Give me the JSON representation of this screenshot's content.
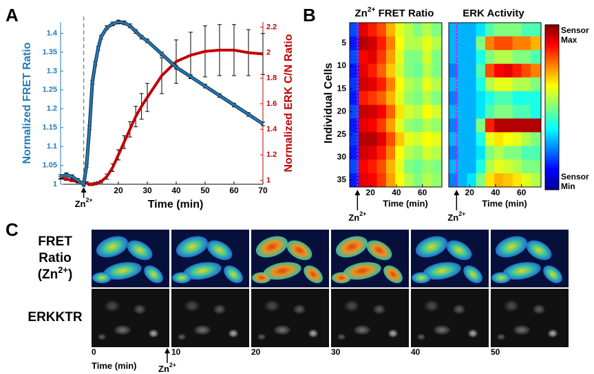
{
  "panel_labels": [
    "A",
    "B",
    "C"
  ],
  "chart_data": [
    {
      "type": "line",
      "xlabel": "Time (min)",
      "ylabel": "Normalized FRET Ratio",
      "y2label": "Normalized ERK C/N Ratio",
      "xlim": [
        0,
        70
      ],
      "xticks": [
        20,
        30,
        40,
        50,
        60,
        70
      ],
      "ylim": [
        1,
        1.43
      ],
      "yticks": [
        1,
        1.05,
        1.1,
        1.15,
        1.2,
        1.25,
        1.3,
        1.35,
        1.4
      ],
      "y2lim": [
        0.97,
        2.24
      ],
      "y2ticks": [
        1,
        1.2,
        1.4,
        1.6,
        1.8,
        2,
        2.2
      ],
      "x": [
        0,
        2,
        4,
        6,
        8,
        9,
        10,
        11,
        12,
        13,
        14,
        16,
        18,
        20,
        22,
        24,
        26,
        28,
        30,
        35,
        40,
        45,
        50,
        55,
        60,
        65,
        70
      ],
      "series": [
        {
          "color": "#1f7ab8",
          "axis": "y",
          "values": [
            1.02,
            1.025,
            1.02,
            1.01,
            1.0,
            1.05,
            1.15,
            1.27,
            1.32,
            1.36,
            1.39,
            1.415,
            1.425,
            1.43,
            1.428,
            1.42,
            1.405,
            1.39,
            1.38,
            1.345,
            1.31,
            1.285,
            1.26,
            1.235,
            1.21,
            1.185,
            1.16
          ],
          "errors": [
            0.005,
            0.005,
            0.005,
            0.005,
            0.005,
            0.005,
            0.005,
            0.005,
            0.005,
            0.005,
            0.005,
            0.005,
            0.005,
            0.005,
            0.005,
            0.005,
            0.005,
            0.005,
            0.005,
            0.005,
            0.005,
            0.005,
            0.005,
            0.005,
            0.005,
            0.005,
            0.005
          ]
        },
        {
          "color": "#c00000",
          "axis": "y2",
          "values": [
            1.02,
            1.01,
            1.0,
            0.99,
            0.98,
            0.98,
            0.97,
            0.97,
            0.975,
            0.98,
            0.99,
            1.03,
            1.1,
            1.2,
            1.3,
            1.4,
            1.5,
            1.58,
            1.65,
            1.82,
            1.93,
            1.98,
            2.01,
            2.02,
            2.02,
            2.0,
            1.99
          ],
          "errors": [
            0.01,
            0.01,
            0.01,
            0.01,
            0.01,
            0.01,
            0.01,
            0.01,
            0.01,
            0.01,
            0.01,
            0.02,
            0.03,
            0.04,
            0.05,
            0.06,
            0.08,
            0.1,
            0.11,
            0.14,
            0.17,
            0.18,
            0.2,
            0.2,
            0.2,
            0.18,
            0.16
          ]
        }
      ],
      "annotation": {
        "x": 8,
        "parts": [
          {
            "text": "Zn"
          },
          {
            "text": "2+",
            "sup": true
          }
        ]
      }
    },
    {
      "type": "heatmap",
      "title_parts": [
        {
          "text": "Zn"
        },
        {
          "text": "2+",
          "sup": true
        },
        {
          "text": " FRET Ratio"
        }
      ],
      "xlabel": "Time (min)",
      "ylabel": "Individual Cells",
      "xlim": [
        4,
        75
      ],
      "xticks": [
        20,
        40,
        60
      ],
      "ylim": [
        0.5,
        36.5
      ],
      "yticks": [
        5,
        10,
        15,
        20,
        25,
        30,
        35
      ],
      "clim": [
        0,
        1
      ],
      "x_edges": [
        4,
        11,
        18,
        25,
        32,
        39,
        46,
        53,
        60,
        67,
        75
      ],
      "y_edges": [
        0.5,
        3.5,
        6.5,
        9.5,
        12.5,
        15.5,
        18.5,
        21.5,
        24.5,
        27.5,
        30.5,
        33.5,
        36.5
      ],
      "values": [
        [
          0.2,
          0.9,
          0.85,
          0.8,
          0.7,
          0.6,
          0.55,
          0.5,
          0.55,
          0.5
        ],
        [
          0.15,
          0.95,
          0.92,
          0.85,
          0.75,
          0.62,
          0.55,
          0.55,
          0.6,
          0.55
        ],
        [
          0.2,
          0.88,
          0.9,
          0.82,
          0.72,
          0.6,
          0.5,
          0.5,
          0.58,
          0.5
        ],
        [
          0.15,
          0.9,
          0.85,
          0.78,
          0.68,
          0.58,
          0.5,
          0.48,
          0.55,
          0.5
        ],
        [
          0.18,
          0.92,
          0.9,
          0.85,
          0.75,
          0.62,
          0.55,
          0.52,
          0.6,
          0.55
        ],
        [
          0.15,
          0.85,
          0.82,
          0.78,
          0.7,
          0.6,
          0.52,
          0.5,
          0.55,
          0.5
        ],
        [
          0.2,
          0.93,
          0.92,
          0.88,
          0.78,
          0.65,
          0.58,
          0.55,
          0.62,
          0.58
        ],
        [
          0.15,
          0.9,
          0.88,
          0.82,
          0.72,
          0.6,
          0.52,
          0.5,
          0.55,
          0.52
        ],
        [
          0.18,
          0.95,
          0.95,
          0.9,
          0.8,
          0.68,
          0.6,
          0.58,
          0.62,
          0.6
        ],
        [
          0.15,
          0.92,
          0.9,
          0.85,
          0.75,
          0.62,
          0.55,
          0.52,
          0.58,
          0.55
        ],
        [
          0.2,
          0.88,
          0.85,
          0.8,
          0.7,
          0.6,
          0.5,
          0.48,
          0.52,
          0.5
        ],
        [
          0.15,
          0.9,
          0.88,
          0.82,
          0.72,
          0.62,
          0.55,
          0.5,
          0.55,
          0.52
        ]
      ],
      "annotation": {
        "x": 10,
        "parts": [
          {
            "text": "Zn"
          },
          {
            "text": "2+",
            "sup": true
          }
        ]
      }
    },
    {
      "type": "heatmap",
      "title_parts": [
        {
          "text": "ERK Activity"
        }
      ],
      "xlabel": "Time (min)",
      "xlim": [
        4,
        75
      ],
      "xticks": [
        20,
        40,
        60
      ],
      "ylim": [
        0.5,
        36.5
      ],
      "clim": [
        0,
        1
      ],
      "x_edges": [
        4,
        11,
        18,
        25,
        32,
        39,
        46,
        53,
        60,
        67,
        75
      ],
      "y_edges": [
        0.5,
        3.5,
        6.5,
        9.5,
        12.5,
        15.5,
        18.5,
        21.5,
        24.5,
        27.5,
        30.5,
        33.5,
        36.5
      ],
      "values": [
        [
          0.3,
          0.3,
          0.3,
          0.35,
          0.45,
          0.5,
          0.5,
          0.5,
          0.45,
          0.45
        ],
        [
          0.3,
          0.3,
          0.3,
          0.5,
          0.75,
          0.8,
          0.8,
          0.75,
          0.75,
          0.7
        ],
        [
          0.3,
          0.3,
          0.3,
          0.4,
          0.5,
          0.55,
          0.55,
          0.5,
          0.5,
          0.45
        ],
        [
          0.25,
          0.3,
          0.3,
          0.45,
          0.8,
          0.88,
          0.9,
          0.85,
          0.8,
          0.75
        ],
        [
          0.3,
          0.3,
          0.3,
          0.4,
          0.55,
          0.6,
          0.6,
          0.55,
          0.55,
          0.5
        ],
        [
          0.25,
          0.3,
          0.3,
          0.35,
          0.4,
          0.45,
          0.45,
          0.4,
          0.4,
          0.4
        ],
        [
          0.3,
          0.3,
          0.3,
          0.35,
          0.45,
          0.5,
          0.5,
          0.45,
          0.45,
          0.4
        ],
        [
          0.25,
          0.3,
          0.3,
          0.5,
          0.85,
          0.95,
          0.95,
          0.95,
          0.95,
          0.95
        ],
        [
          0.3,
          0.3,
          0.3,
          0.4,
          0.6,
          0.65,
          0.62,
          0.6,
          0.55,
          0.5
        ],
        [
          0.25,
          0.3,
          0.3,
          0.35,
          0.5,
          0.55,
          0.5,
          0.5,
          0.45,
          0.45
        ],
        [
          0.3,
          0.3,
          0.3,
          0.4,
          0.55,
          0.6,
          0.58,
          0.55,
          0.5,
          0.5
        ],
        [
          0.25,
          0.3,
          0.35,
          0.5,
          0.65,
          0.7,
          0.68,
          0.65,
          0.6,
          0.55
        ]
      ],
      "annotation": {
        "x": 10,
        "parts": [
          {
            "text": "Zn"
          },
          {
            "text": "2+",
            "sup": true
          }
        ]
      }
    }
  ],
  "colorbar": {
    "max_lines": [
      "Sensor",
      "Max"
    ],
    "min_lines": [
      "Sensor",
      "Min"
    ]
  },
  "images": {
    "row_labels": [
      {
        "lines": [
          [
            {
              "text": "FRET"
            }
          ],
          [
            {
              "text": "Ratio"
            }
          ],
          [
            {
              "text": "(Zn"
            },
            {
              "text": "2+",
              "sup": true
            },
            {
              "text": ")"
            }
          ]
        ]
      },
      {
        "lines": [
          [
            {
              "text": "ERKKTR"
            }
          ]
        ]
      }
    ],
    "times": [
      0,
      10,
      20,
      30,
      40,
      50
    ],
    "time_label": "Time (min)",
    "annotation_parts": [
      {
        "text": "Zn"
      },
      {
        "text": "2+",
        "sup": true
      }
    ]
  }
}
